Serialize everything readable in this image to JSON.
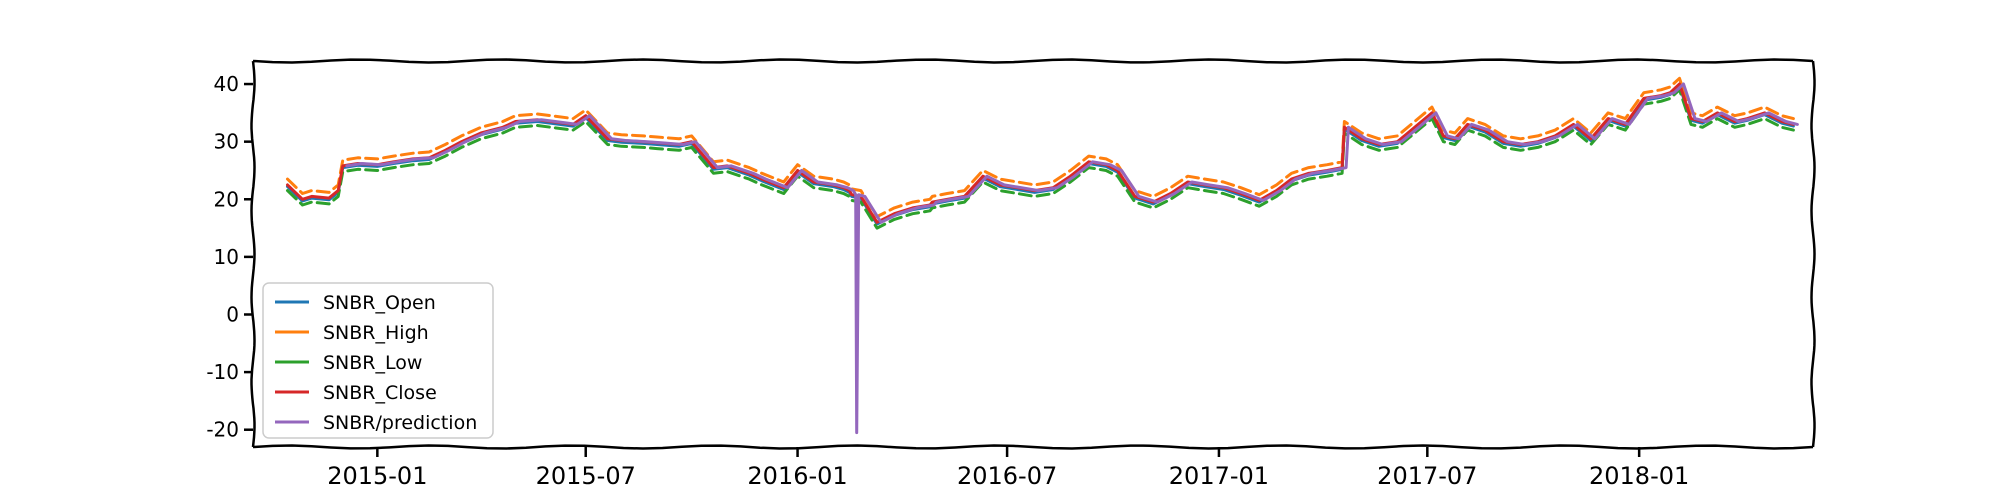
{
  "chart_data": {
    "type": "line",
    "title": "",
    "xlabel": "",
    "ylabel": "",
    "xlim": [
      "2014-09-15",
      "2018-06-01"
    ],
    "ylim": [
      -23,
      44
    ],
    "yticks": [
      40,
      30,
      20,
      10,
      0,
      -10,
      -20
    ],
    "ytick_labels": [
      "40",
      "30",
      "20",
      "10",
      "0",
      "-10",
      "-20"
    ],
    "xticks": [
      "2015-01-01",
      "2015-07-01",
      "2016-01-01",
      "2016-07-01",
      "2017-01-01",
      "2017-07-01",
      "2018-01-01"
    ],
    "xtick_labels": [
      "2015-01",
      "2015-07",
      "2016-01",
      "2016-07",
      "2017-01",
      "2017-07",
      "2018-01"
    ],
    "grid": false,
    "legend_position": "lower-left",
    "close_series": {
      "name": "SNBR_Close",
      "x": [
        "2014-10-15",
        "2014-10-28",
        "2014-11-05",
        "2014-11-20",
        "2014-11-28",
        "2014-12-02",
        "2014-12-15",
        "2015-01-01",
        "2015-01-15",
        "2015-02-01",
        "2015-02-15",
        "2015-03-01",
        "2015-03-15",
        "2015-04-01",
        "2015-04-20",
        "2015-05-01",
        "2015-05-20",
        "2015-06-01",
        "2015-06-20",
        "2015-07-01",
        "2015-07-20",
        "2015-08-01",
        "2015-08-20",
        "2015-09-01",
        "2015-09-20",
        "2015-10-01",
        "2015-10-20",
        "2015-11-01",
        "2015-11-20",
        "2015-12-01",
        "2015-12-20",
        "2016-01-01",
        "2016-01-15",
        "2016-02-01",
        "2016-02-10",
        "2016-02-15",
        "2016-02-17",
        "2016-02-25",
        "2016-03-10",
        "2016-03-25",
        "2016-04-10",
        "2016-04-25",
        "2016-04-27",
        "2016-05-10",
        "2016-05-25",
        "2016-06-10",
        "2016-06-25",
        "2016-07-10",
        "2016-07-25",
        "2016-08-10",
        "2016-08-25",
        "2016-09-10",
        "2016-09-25",
        "2016-10-05",
        "2016-10-20",
        "2016-11-05",
        "2016-11-20",
        "2016-12-05",
        "2016-12-20",
        "2017-01-05",
        "2017-01-20",
        "2017-02-05",
        "2017-02-20",
        "2017-03-05",
        "2017-03-20",
        "2017-04-05",
        "2017-04-18",
        "2017-04-20",
        "2017-05-05",
        "2017-05-20",
        "2017-06-05",
        "2017-06-20",
        "2017-07-05",
        "2017-07-15",
        "2017-07-25",
        "2017-08-05",
        "2017-08-20",
        "2017-09-05",
        "2017-09-20",
        "2017-10-05",
        "2017-10-20",
        "2017-11-05",
        "2017-11-20",
        "2017-12-05",
        "2017-12-20",
        "2018-01-05",
        "2018-01-20",
        "2018-01-28",
        "2018-02-05",
        "2018-02-15",
        "2018-02-25",
        "2018-03-10",
        "2018-03-25",
        "2018-04-05",
        "2018-04-20",
        "2018-05-05",
        "2018-05-15"
      ],
      "values": [
        22.5,
        20.0,
        20.5,
        20.2,
        21.5,
        25.8,
        26.2,
        26.0,
        26.5,
        27.0,
        27.2,
        28.5,
        30.0,
        31.5,
        32.5,
        33.5,
        33.8,
        33.5,
        33.0,
        34.5,
        30.5,
        30.2,
        30.0,
        29.8,
        29.5,
        30.0,
        25.5,
        25.8,
        24.5,
        23.5,
        22.0,
        25.0,
        23.0,
        22.5,
        22.0,
        21.5,
        20.8,
        20.5,
        16.0,
        17.5,
        18.5,
        19.0,
        19.5,
        20.0,
        20.5,
        24.0,
        22.5,
        22.0,
        21.5,
        22.0,
        24.0,
        26.5,
        26.0,
        25.0,
        20.5,
        19.5,
        21.0,
        23.0,
        22.5,
        22.0,
        21.0,
        19.8,
        21.5,
        23.5,
        24.5,
        25.0,
        25.5,
        32.5,
        30.5,
        29.5,
        30.0,
        32.5,
        35.0,
        31.0,
        30.5,
        33.0,
        32.0,
        30.0,
        29.5,
        30.0,
        31.0,
        33.0,
        30.5,
        34.0,
        33.0,
        37.5,
        38.0,
        38.5,
        40.0,
        34.0,
        33.5,
        35.0,
        33.5,
        34.0,
        35.0,
        33.5,
        33.0
      ]
    },
    "series": [
      {
        "name": "SNBR_Open",
        "color": "#1f77b4",
        "dx": 0,
        "dy": -0.3,
        "dash": "",
        "start": 0
      },
      {
        "name": "SNBR_High",
        "color": "#ff7f0e",
        "dx": 0,
        "dy": 1.0,
        "dash": "12,6",
        "start": 0
      },
      {
        "name": "SNBR_Low",
        "color": "#2ca02c",
        "dx": 0,
        "dy": -1.0,
        "dash": "12,6",
        "start": 0
      },
      {
        "name": "SNBR_Close",
        "color": "#d62728",
        "dx": 0,
        "dy": 0,
        "dash": "",
        "start": 0
      },
      {
        "name": "SNBR/prediction",
        "color": "#9467bd",
        "dx": 4,
        "dy": 0,
        "dash": "",
        "start": 5
      }
    ],
    "prediction_spike": {
      "x": "2016-02-17",
      "min": -20.5
    }
  }
}
